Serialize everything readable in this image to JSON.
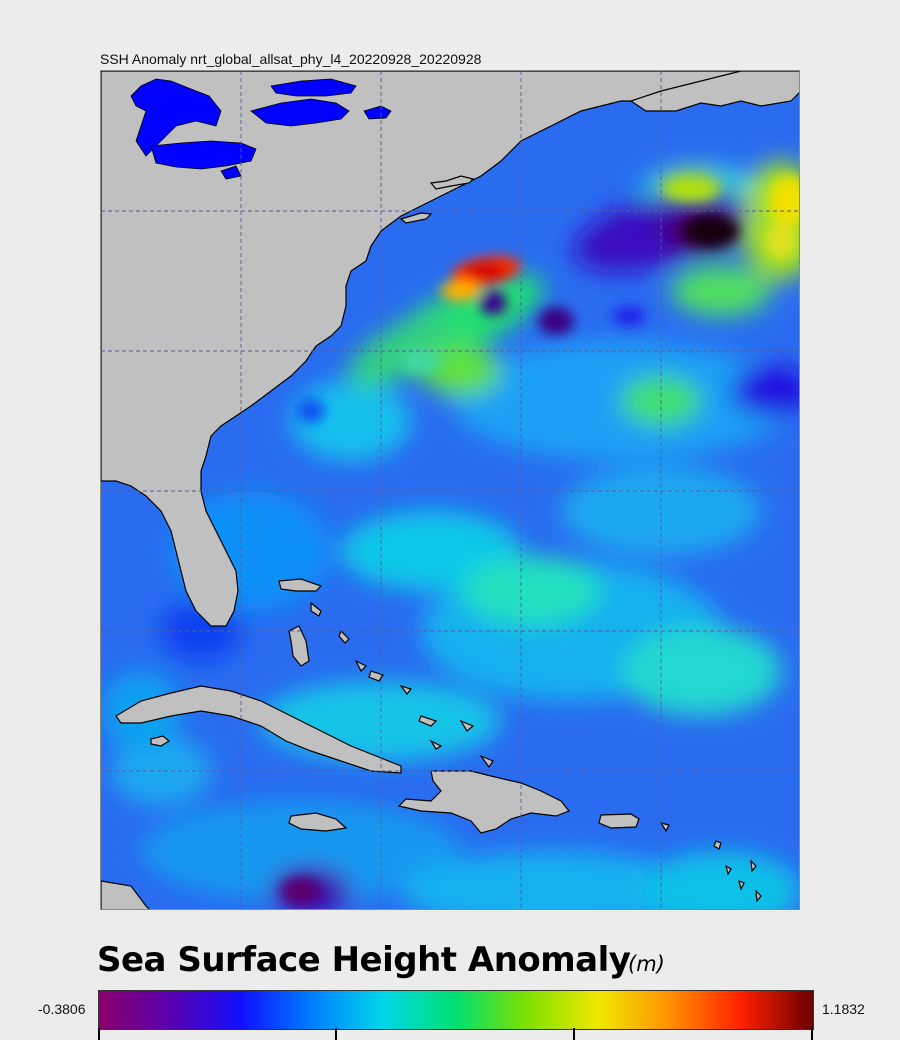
{
  "map": {
    "title": "SSH Anomaly nrt_global_allsat_phy_l4_20220928_20220928",
    "variable": "Sea Surface Height Anomaly",
    "region": "Western North Atlantic / Caribbean",
    "land_color": "#c0c0c0",
    "lake_color": "#0000ff",
    "graticule_color": "#5a5a9a"
  },
  "legend": {
    "title": "Sea Surface Height Anomaly",
    "unit": "(m)",
    "min_label": "-0.3806",
    "max_label": "1.1832",
    "min": -0.3806,
    "max": 1.1832,
    "colors": [
      "#8a006b",
      "#5a00b0",
      "#1010ff",
      "#0080ff",
      "#00d8e8",
      "#00e070",
      "#80e000",
      "#f0e800",
      "#ff9000",
      "#ff2000",
      "#6a0000"
    ]
  }
}
